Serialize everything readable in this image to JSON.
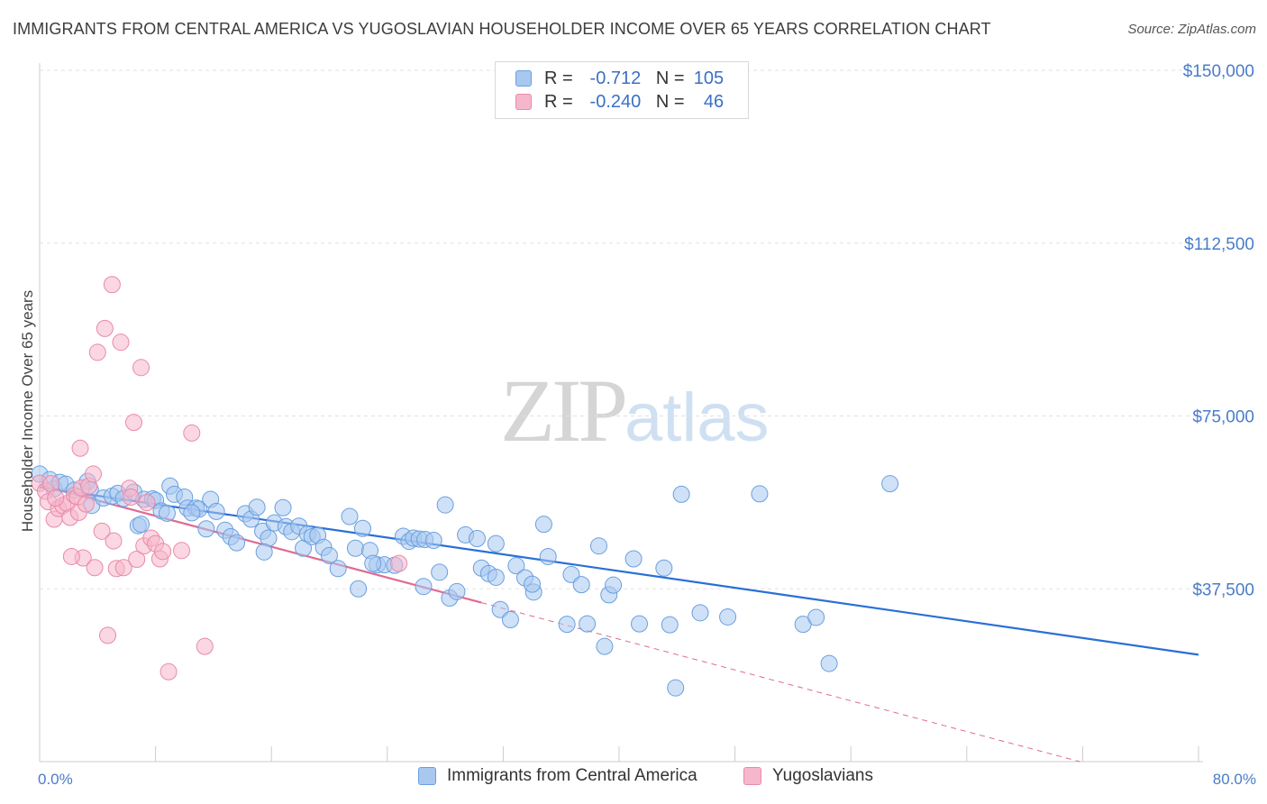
{
  "title": "IMMIGRANTS FROM CENTRAL AMERICA VS YUGOSLAVIAN HOUSEHOLDER INCOME OVER 65 YEARS CORRELATION CHART",
  "source": "Source: ZipAtlas.com",
  "watermark": {
    "zip": "ZIP",
    "atlas": "atlas"
  },
  "legend": {
    "rows": [
      {
        "r_label": "R =",
        "r_value": "-0.712",
        "n_label": "N =",
        "n_value": "105",
        "color": "#a8c8f0"
      },
      {
        "r_label": "R =",
        "r_value": "-0.240",
        "n_label": "N =",
        "n_value": "46",
        "color": "#f6b6cb"
      }
    ]
  },
  "bottom_legend": [
    {
      "label": "Immigrants from Central America",
      "color": "#a8c8f0"
    },
    {
      "label": "Yugoslavians",
      "color": "#f6b6cb"
    }
  ],
  "chart_data": {
    "type": "scatter",
    "title": "IMMIGRANTS FROM CENTRAL AMERICA VS YUGOSLAVIAN HOUSEHOLDER INCOME OVER 65 YEARS CORRELATION CHART",
    "xlabel": "",
    "ylabel": "Householder Income Over 65 years",
    "xlim": [
      0,
      80
    ],
    "ylim": [
      0,
      153750
    ],
    "x_tick_labels": [
      "0.0%",
      "80.0%"
    ],
    "y_ticks": [
      37500,
      75000,
      112500,
      150000
    ],
    "y_tick_labels": [
      "$37,500",
      "$75,000",
      "$112,500",
      "$150,000"
    ],
    "grid": true,
    "legend_position": "top-center",
    "series": [
      {
        "name": "Immigrants from Central America",
        "color": "#a8c8f0",
        "stroke": "#6a9fe0",
        "trend": {
          "x": [
            0,
            80
          ],
          "y": [
            59500,
            23200
          ],
          "color": "#2a6fd6"
        },
        "points": [
          [
            0.0,
            62400
          ],
          [
            0.7,
            61200
          ],
          [
            1.0,
            59200
          ],
          [
            1.4,
            60600
          ],
          [
            1.8,
            60200
          ],
          [
            2.4,
            58900
          ],
          [
            3.3,
            60800
          ],
          [
            3.5,
            59000
          ],
          [
            3.6,
            55600
          ],
          [
            4.4,
            57200
          ],
          [
            5.0,
            57600
          ],
          [
            5.4,
            58200
          ],
          [
            5.8,
            57100
          ],
          [
            6.5,
            58500
          ],
          [
            6.8,
            51200
          ],
          [
            7.2,
            56900
          ],
          [
            7.8,
            57000
          ],
          [
            8.0,
            56700
          ],
          [
            8.4,
            54400
          ],
          [
            8.8,
            53900
          ],
          [
            9.0,
            59800
          ],
          [
            9.3,
            58000
          ],
          [
            10.0,
            57400
          ],
          [
            10.2,
            55000
          ],
          [
            10.8,
            55000
          ],
          [
            11.0,
            54800
          ],
          [
            11.5,
            50500
          ],
          [
            11.8,
            56900
          ],
          [
            12.2,
            54300
          ],
          [
            12.8,
            50200
          ],
          [
            13.2,
            48800
          ],
          [
            13.6,
            47500
          ],
          [
            14.2,
            53800
          ],
          [
            14.6,
            52600
          ],
          [
            15.0,
            55200
          ],
          [
            15.4,
            50000
          ],
          [
            15.8,
            48500
          ],
          [
            16.2,
            51800
          ],
          [
            16.8,
            55100
          ],
          [
            17.0,
            51000
          ],
          [
            17.4,
            49900
          ],
          [
            17.9,
            51100
          ],
          [
            18.2,
            46300
          ],
          [
            18.5,
            49400
          ],
          [
            18.8,
            48800
          ],
          [
            19.2,
            49100
          ],
          [
            19.6,
            46500
          ],
          [
            20.0,
            44700
          ],
          [
            20.6,
            41900
          ],
          [
            21.4,
            53200
          ],
          [
            21.8,
            46300
          ],
          [
            22.3,
            50600
          ],
          [
            22.8,
            45800
          ],
          [
            23.3,
            42700
          ],
          [
            23.8,
            42700
          ],
          [
            24.5,
            42600
          ],
          [
            25.1,
            48900
          ],
          [
            25.5,
            47800
          ],
          [
            25.8,
            48500
          ],
          [
            26.2,
            48300
          ],
          [
            26.6,
            48200
          ],
          [
            27.2,
            48000
          ],
          [
            27.6,
            41100
          ],
          [
            28.0,
            55700
          ],
          [
            28.3,
            35500
          ],
          [
            28.8,
            36900
          ],
          [
            29.4,
            49200
          ],
          [
            30.2,
            48400
          ],
          [
            30.5,
            42000
          ],
          [
            31.0,
            40800
          ],
          [
            31.5,
            47300
          ],
          [
            31.8,
            33000
          ],
          [
            32.5,
            30800
          ],
          [
            32.9,
            42500
          ],
          [
            33.5,
            39900
          ],
          [
            34.1,
            36800
          ],
          [
            34.8,
            51500
          ],
          [
            35.1,
            44500
          ],
          [
            36.4,
            29800
          ],
          [
            36.7,
            40600
          ],
          [
            37.4,
            38400
          ],
          [
            37.8,
            29900
          ],
          [
            38.6,
            46800
          ],
          [
            39.0,
            25000
          ],
          [
            39.3,
            36200
          ],
          [
            39.6,
            38300
          ],
          [
            41.4,
            29900
          ],
          [
            43.1,
            42000
          ],
          [
            43.5,
            29700
          ],
          [
            43.9,
            16000
          ],
          [
            44.3,
            58000
          ],
          [
            45.6,
            32300
          ],
          [
            47.5,
            31400
          ],
          [
            49.7,
            58100
          ],
          [
            52.7,
            29800
          ],
          [
            53.6,
            31300
          ],
          [
            54.5,
            21300
          ],
          [
            58.7,
            60300
          ],
          [
            22.0,
            37500
          ],
          [
            23.0,
            43000
          ],
          [
            26.5,
            38000
          ],
          [
            41.0,
            44000
          ],
          [
            34.0,
            38500
          ],
          [
            15.5,
            45500
          ],
          [
            31.5,
            40000
          ],
          [
            7.0,
            51500
          ],
          [
            10.5,
            54000
          ]
        ]
      },
      {
        "name": "Yugoslavians",
        "color": "#f6b6cb",
        "stroke": "#e98aa8",
        "trend": {
          "x": [
            0,
            30.5
          ],
          "y": [
            60000,
            34500
          ],
          "color": "#e06a93"
        },
        "trend_extension": {
          "x": [
            30.5,
            79
          ],
          "y": [
            34500,
            -6000
          ],
          "color": "#e06a93"
        },
        "points": [
          [
            0.0,
            60400
          ],
          [
            0.4,
            58700
          ],
          [
            0.6,
            56400
          ],
          [
            0.8,
            60300
          ],
          [
            1.0,
            52600
          ],
          [
            1.3,
            54900
          ],
          [
            1.6,
            55600
          ],
          [
            1.9,
            56000
          ],
          [
            2.1,
            53000
          ],
          [
            2.4,
            57800
          ],
          [
            2.6,
            57400
          ],
          [
            2.7,
            54100
          ],
          [
            2.8,
            68000
          ],
          [
            2.9,
            59400
          ],
          [
            3.0,
            44200
          ],
          [
            3.2,
            55900
          ],
          [
            3.4,
            59800
          ],
          [
            3.7,
            62400
          ],
          [
            3.8,
            42100
          ],
          [
            4.0,
            88800
          ],
          [
            4.3,
            50000
          ],
          [
            4.5,
            94000
          ],
          [
            4.7,
            27400
          ],
          [
            5.0,
            103500
          ],
          [
            5.1,
            47900
          ],
          [
            5.3,
            41900
          ],
          [
            5.6,
            91000
          ],
          [
            5.8,
            42100
          ],
          [
            6.2,
            59300
          ],
          [
            6.3,
            57400
          ],
          [
            6.5,
            73600
          ],
          [
            6.7,
            43900
          ],
          [
            7.0,
            85500
          ],
          [
            7.2,
            46800
          ],
          [
            7.4,
            56200
          ],
          [
            7.7,
            48500
          ],
          [
            8.0,
            47300
          ],
          [
            8.3,
            44000
          ],
          [
            8.5,
            45600
          ],
          [
            8.9,
            19500
          ],
          [
            9.8,
            45800
          ],
          [
            10.5,
            71300
          ],
          [
            11.4,
            25000
          ],
          [
            24.8,
            43000
          ],
          [
            1.1,
            57200
          ],
          [
            2.2,
            44500
          ]
        ]
      }
    ]
  }
}
